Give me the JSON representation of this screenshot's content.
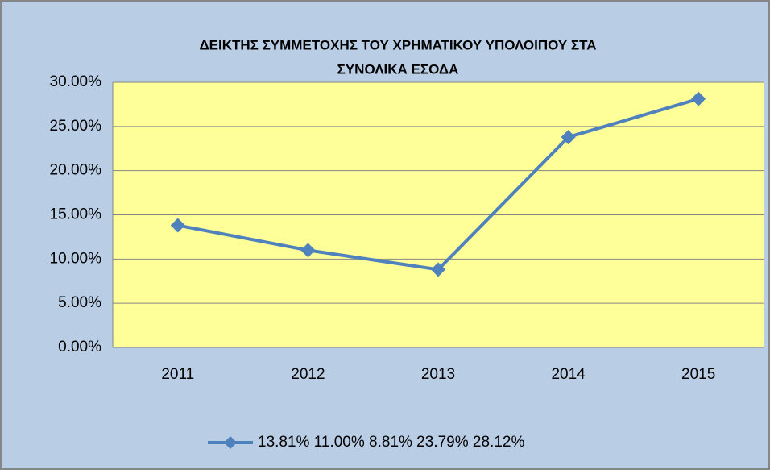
{
  "chart_data": {
    "type": "line",
    "title": [
      "ΔΕΙΚΤΗΣ ΣΥΜΜΕΤΟΧΗΣ ΤΟΥ ΧΡΗΜΑΤΙΚΟΥ ΥΠΟΛΟΙΠΟΥ ΣΤΑ",
      "ΣΥΝΟΛΙΚΑ ΕΣΟΔΑ"
    ],
    "categories": [
      "2011",
      "2012",
      "2013",
      "2014",
      "2015"
    ],
    "series": [
      {
        "name": "13.81% 11.00% 8.81% 23.79% 28.12%",
        "color": "#4f81bd",
        "values": [
          13.81,
          11.0,
          8.81,
          23.79,
          28.12
        ]
      }
    ],
    "ylim": [
      0,
      30
    ],
    "yticks": [
      {
        "value": 0,
        "label": "0.00%"
      },
      {
        "value": 5,
        "label": "5.00%"
      },
      {
        "value": 10,
        "label": "10.00%"
      },
      {
        "value": 15,
        "label": "15.00%"
      },
      {
        "value": 20,
        "label": "20.00%"
      },
      {
        "value": 25,
        "label": "25.00%"
      },
      {
        "value": 30,
        "label": "30.00%"
      }
    ],
    "grid": true,
    "legend": "bottom"
  }
}
